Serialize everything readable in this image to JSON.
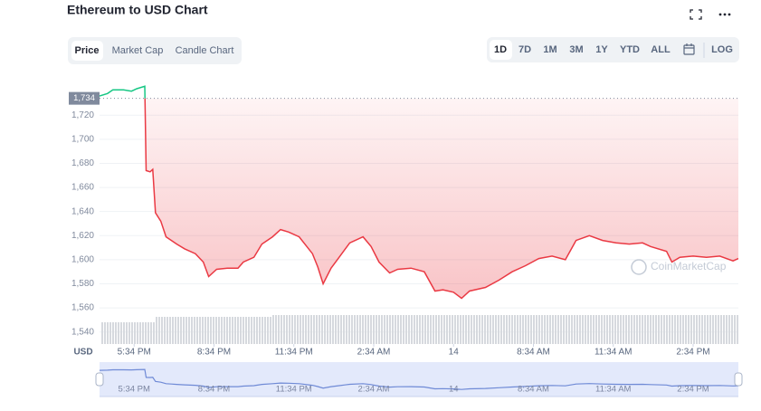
{
  "header": {
    "title": "Ethereum to USD Chart"
  },
  "tabs": [
    "Price",
    "Market Cap",
    "Candle Chart"
  ],
  "ranges": [
    "1D",
    "7D",
    "1M",
    "3M",
    "1Y",
    "YTD",
    "ALL"
  ],
  "log_button": "LOG",
  "chart_data": {
    "type": "line",
    "y_unit_label": "USD",
    "watermark": "CoinMarketCap",
    "reference": {
      "value": 1734,
      "label": "1,734"
    },
    "color": "#ea3943",
    "above_color": "#16c784",
    "grid": true,
    "xlim": [
      0,
      24
    ],
    "ylim": [
      1530,
      1745
    ],
    "yticks": [
      {
        "value": 1540,
        "label": "1,540"
      },
      {
        "value": 1560,
        "label": "1,560"
      },
      {
        "value": 1580,
        "label": "1,580"
      },
      {
        "value": 1600,
        "label": "1,600"
      },
      {
        "value": 1620,
        "label": "1,620"
      },
      {
        "value": 1640,
        "label": "1,640"
      },
      {
        "value": 1660,
        "label": "1,660"
      },
      {
        "value": 1680,
        "label": "1,680"
      },
      {
        "value": 1700,
        "label": "1,700"
      },
      {
        "value": 1720,
        "label": "1,720"
      }
    ],
    "xticks": [
      {
        "value": 1.3,
        "label": "5:34 PM"
      },
      {
        "value": 4.3,
        "label": "8:34 PM"
      },
      {
        "value": 7.3,
        "label": "11:34 PM"
      },
      {
        "value": 10.3,
        "label": "2:34 AM"
      },
      {
        "value": 13.3,
        "label": "14"
      },
      {
        "value": 16.3,
        "label": "8:34 AM"
      },
      {
        "value": 19.3,
        "label": "11:34 AM"
      },
      {
        "value": 22.3,
        "label": "2:34 PM"
      }
    ],
    "x": [
      0,
      0.3,
      0.5,
      0.9,
      1.2,
      1.4,
      1.7,
      1.75,
      1.9,
      2.0,
      2.1,
      2.3,
      2.5,
      2.7,
      2.9,
      3.2,
      3.6,
      3.9,
      4.1,
      4.4,
      4.8,
      5.2,
      5.4,
      5.8,
      6.1,
      6.5,
      6.8,
      7.1,
      7.5,
      8.0,
      8.2,
      8.4,
      8.7,
      9.0,
      9.4,
      9.9,
      10.2,
      10.5,
      10.9,
      11.2,
      11.7,
      12.2,
      12.6,
      12.9,
      13.3,
      13.6,
      13.9,
      14.5,
      15.0,
      15.5,
      16.0,
      16.5,
      17.0,
      17.5,
      17.9,
      18.4,
      18.9,
      19.4,
      19.9,
      20.4,
      20.7,
      21.3,
      21.5,
      21.8,
      22.3,
      22.8,
      23.3,
      23.8,
      24.0
    ],
    "values": [
      1736,
      1738,
      1741,
      1741,
      1740,
      1742,
      1744,
      1674,
      1673,
      1675,
      1639,
      1632,
      1619,
      1616,
      1613,
      1609,
      1605,
      1598,
      1586,
      1592,
      1593,
      1593,
      1598,
      1602,
      1613,
      1619,
      1625,
      1623,
      1619,
      1605,
      1594,
      1580,
      1593,
      1602,
      1614,
      1619,
      1611,
      1598,
      1589,
      1592,
      1593,
      1590,
      1574,
      1575,
      1573,
      1568,
      1574,
      1577,
      1583,
      1590,
      1595,
      1601,
      1603,
      1600,
      1616,
      1620,
      1616,
      1614,
      1613,
      1614,
      1611,
      1607,
      1598,
      1602,
      1603,
      1602,
      1603,
      1599,
      1601
    ]
  }
}
